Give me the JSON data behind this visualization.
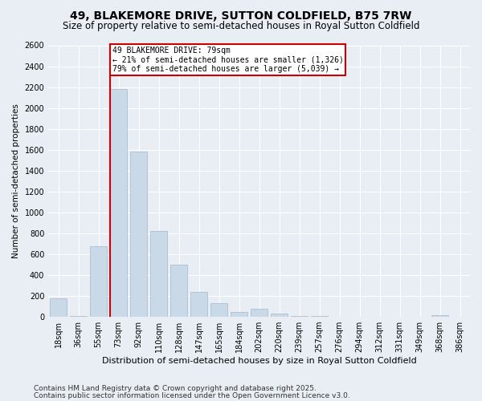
{
  "title": "49, BLAKEMORE DRIVE, SUTTON COLDFIELD, B75 7RW",
  "subtitle": "Size of property relative to semi-detached houses in Royal Sutton Coldfield",
  "xlabel": "Distribution of semi-detached houses by size in Royal Sutton Coldfield",
  "ylabel": "Number of semi-detached properties",
  "categories": [
    "18sqm",
    "36sqm",
    "55sqm",
    "73sqm",
    "92sqm",
    "110sqm",
    "128sqm",
    "147sqm",
    "165sqm",
    "184sqm",
    "202sqm",
    "220sqm",
    "239sqm",
    "257sqm",
    "276sqm",
    "294sqm",
    "312sqm",
    "331sqm",
    "349sqm",
    "368sqm",
    "386sqm"
  ],
  "values": [
    180,
    5,
    680,
    2180,
    1580,
    820,
    500,
    240,
    130,
    50,
    80,
    30,
    10,
    5,
    2,
    2,
    1,
    0,
    0,
    15,
    0
  ],
  "bar_color": "#c9d9e8",
  "bar_edge_color": "#a0b8cc",
  "highlight_bar_index": 3,
  "highlight_line_color": "#cc0000",
  "annotation_title": "49 BLAKEMORE DRIVE: 79sqm",
  "annotation_line1": "← 21% of semi-detached houses are smaller (1,326)",
  "annotation_line2": "79% of semi-detached houses are larger (5,039) →",
  "annotation_box_color": "#cc0000",
  "ylim": [
    0,
    2600
  ],
  "yticks": [
    0,
    200,
    400,
    600,
    800,
    1000,
    1200,
    1400,
    1600,
    1800,
    2000,
    2200,
    2400,
    2600
  ],
  "footnote1": "Contains HM Land Registry data © Crown copyright and database right 2025.",
  "footnote2": "Contains public sector information licensed under the Open Government Licence v3.0.",
  "bg_color": "#e8eef4",
  "plot_bg_color": "#e8eef4",
  "title_fontsize": 10,
  "subtitle_fontsize": 8.5,
  "tick_fontsize": 7,
  "ylabel_fontsize": 7.5,
  "xlabel_fontsize": 8,
  "footnote_fontsize": 6.5
}
